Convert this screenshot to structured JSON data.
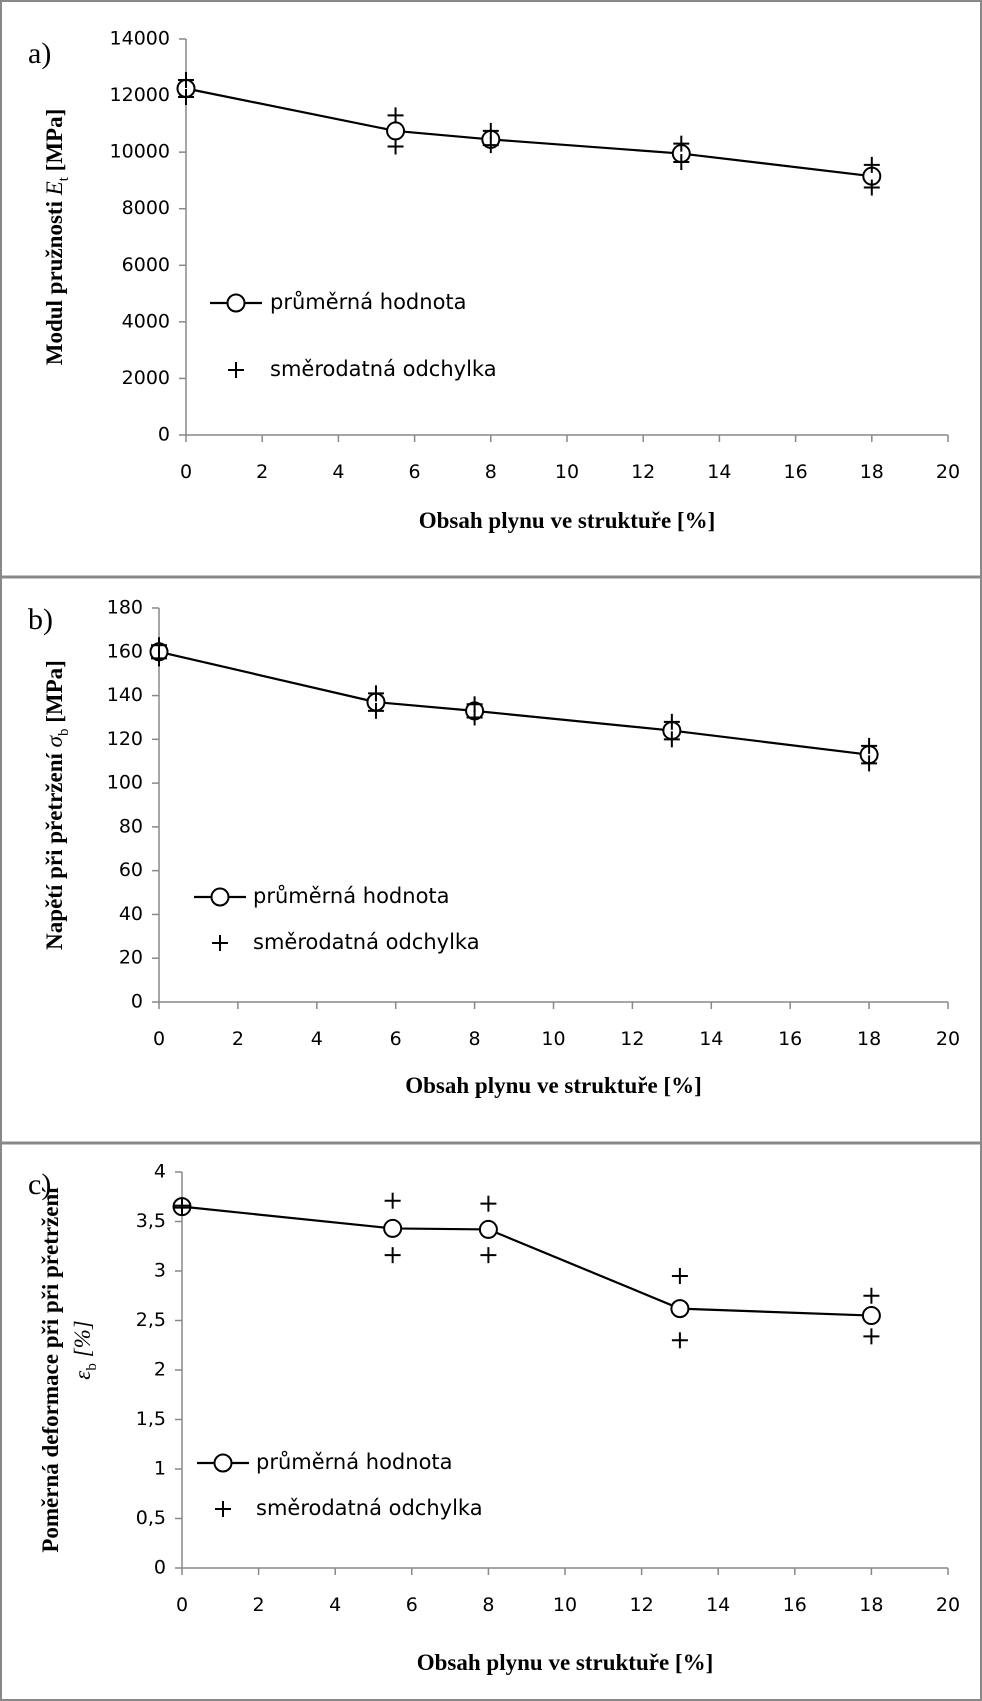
{
  "chart_data": [
    {
      "type": "line",
      "panel_label": "a)",
      "xlabel": "Obsah plynu ve struktuře [%]",
      "ylabel": "Modul pružnosti Et [MPa]",
      "ylabel_main": "Modul pružnosti ",
      "ylabel_symbol": "E",
      "ylabel_sub": "t",
      "ylabel_unit": " [MPa]",
      "xlim": [
        0,
        20
      ],
      "ylim": [
        0,
        14000
      ],
      "xticks": [
        "0",
        "2",
        "4",
        "6",
        "8",
        "10",
        "12",
        "14",
        "16",
        "18",
        "20"
      ],
      "yticks": [
        "0",
        "2000",
        "4000",
        "6000",
        "8000",
        "10000",
        "12000",
        "14000"
      ],
      "grid": false,
      "legend": [
        "průměrná hodnota",
        "směrodatná odchylka"
      ],
      "series": [
        {
          "name": "průměrná hodnota",
          "marker": "circle",
          "x": [
            0,
            5.5,
            8,
            13,
            18
          ],
          "y": [
            12250,
            10750,
            10450,
            9950,
            9150
          ]
        },
        {
          "name": "směrodatná odchylka",
          "marker": "plus",
          "x": [
            0,
            0,
            5.5,
            5.5,
            8,
            8,
            13,
            13,
            18,
            18
          ],
          "y": [
            12550,
            11950,
            11300,
            10200,
            10750,
            10250,
            10300,
            9650,
            9550,
            8750
          ]
        }
      ]
    },
    {
      "type": "line",
      "panel_label": "b)",
      "xlabel": "Obsah plynu ve struktuře [%]",
      "ylabel": "Napětí při přetržení σb [MPa]",
      "ylabel_main": "Napětí při přetržení ",
      "ylabel_symbol": "σ",
      "ylabel_sub": "b",
      "ylabel_unit": " [MPa]",
      "xlim": [
        0,
        20
      ],
      "ylim": [
        0,
        180
      ],
      "xticks": [
        "0",
        "2",
        "4",
        "6",
        "8",
        "10",
        "12",
        "14",
        "16",
        "18",
        "20"
      ],
      "yticks": [
        "0",
        "20",
        "40",
        "60",
        "80",
        "100",
        "120",
        "140",
        "160",
        "180"
      ],
      "grid": false,
      "legend": [
        "průměrná hodnota",
        "směrodatná odchylka"
      ],
      "series": [
        {
          "name": "průměrná hodnota",
          "marker": "circle",
          "x": [
            0,
            5.5,
            8,
            13,
            18
          ],
          "y": [
            160,
            137,
            133,
            124,
            113
          ]
        },
        {
          "name": "směrodatná odchylka",
          "marker": "plus",
          "x": [
            0,
            0,
            5.5,
            5.5,
            8,
            8,
            13,
            13,
            18,
            18
          ],
          "y": [
            163,
            157,
            141,
            133,
            136,
            130,
            128,
            120,
            117,
            109
          ]
        }
      ]
    },
    {
      "type": "line",
      "panel_label": "c)",
      "xlabel": "Obsah plynu ve struktuře [%]",
      "ylabel": "Poměrná deformace při při přetržení εb [%]",
      "ylabel_line1": "Poměrná deformace při při přetržení",
      "ylabel_symbol": "ε",
      "ylabel_sub": "b",
      "ylabel_unit": " [%]",
      "xlim": [
        0,
        20
      ],
      "ylim": [
        0,
        4
      ],
      "xticks": [
        "0",
        "2",
        "4",
        "6",
        "8",
        "10",
        "12",
        "14",
        "16",
        "18",
        "20"
      ],
      "yticks": [
        "0",
        "0,5",
        "1",
        "1,5",
        "2",
        "2,5",
        "3",
        "3,5",
        "4"
      ],
      "grid": false,
      "legend": [
        "průměrná hodnota",
        "směrodatná odchylka"
      ],
      "series": [
        {
          "name": "průměrná hodnota",
          "marker": "circle",
          "x": [
            0,
            5.5,
            8,
            13,
            18
          ],
          "y": [
            3.65,
            3.43,
            3.42,
            2.62,
            2.55
          ]
        },
        {
          "name": "směrodatná odchylka",
          "marker": "plus",
          "x": [
            0,
            0,
            5.5,
            5.5,
            8,
            8,
            13,
            13,
            18,
            18
          ],
          "y": [
            3.66,
            3.64,
            3.71,
            3.16,
            3.68,
            3.16,
            2.95,
            2.3,
            2.75,
            2.34
          ]
        }
      ]
    }
  ]
}
